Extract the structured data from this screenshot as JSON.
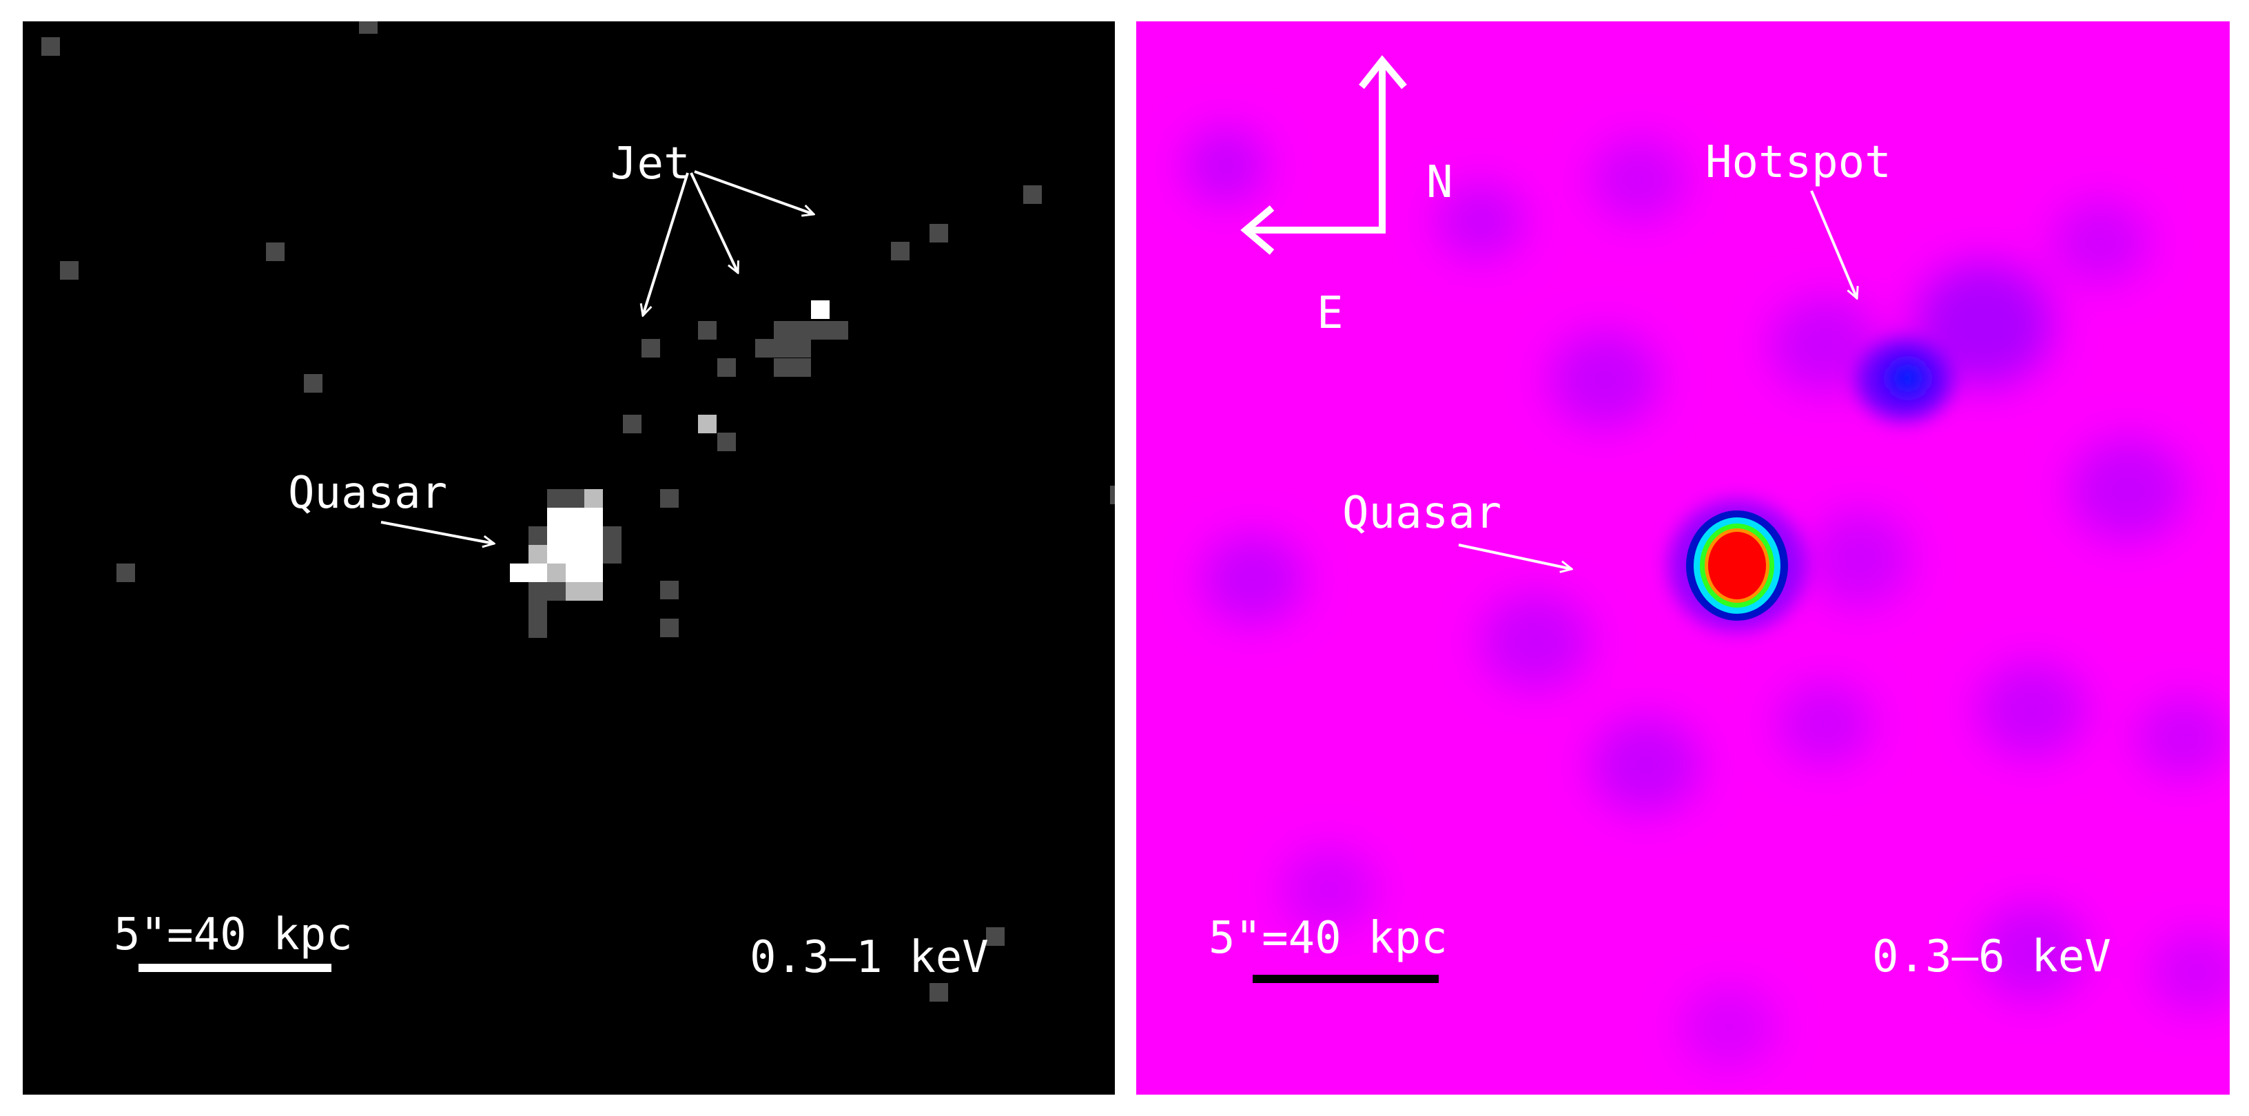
{
  "left_panel": {
    "band": "0.3–1 keV",
    "scale_label": "5\"=40 kpc",
    "jet_label": "Jet",
    "quasar_label": "Quasar",
    "background_color": "#000000",
    "scale_bar_color": "#ffffff"
  },
  "right_panel": {
    "band": "0.3–6 keV",
    "scale_label": "5\"=40 kpc",
    "hotspot_label": "Hotspot",
    "quasar_label": "Quasar",
    "compass": {
      "north": "N",
      "east": "E"
    },
    "background_color": "#ff00ff",
    "scale_bar_color": "#000000",
    "colormap": [
      "#ff00ff",
      "#8a00ff",
      "#0000ff",
      "#00e5ff",
      "#00ff00",
      "#ff9900",
      "#ff0000"
    ]
  }
}
